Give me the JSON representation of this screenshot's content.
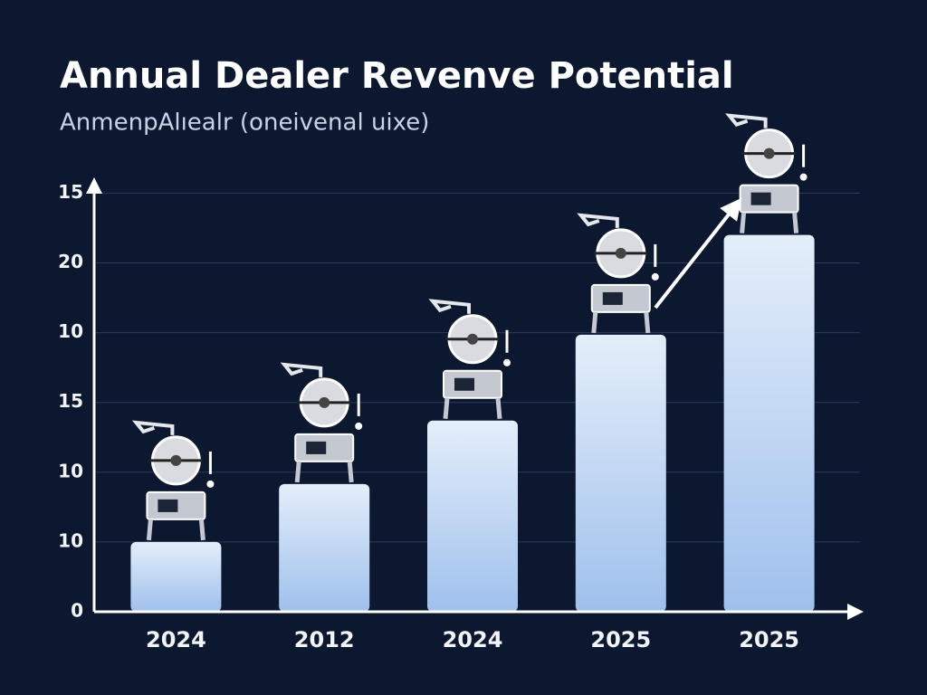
{
  "chart_data": {
    "type": "bar",
    "title": "Annual Dealer Revenve Potential",
    "subtitle": "AnmenpAlıealr (oneivenal uixe)",
    "categories": [
      "2024",
      "2012",
      "2024",
      "2025",
      "2025"
    ],
    "values": [
      1.0,
      1.83,
      2.74,
      3.97,
      5.4
    ],
    "color": "#c9dcf3",
    "ylim": [
      0,
      6.2
    ],
    "yticks": [
      0,
      {
        "value": 1,
        "label": "10"
      },
      {
        "value": 2,
        "label": "10"
      },
      {
        "value": 3,
        "label": "15"
      },
      {
        "value": 4,
        "label": "10"
      },
      {
        "value": 5,
        "label": "20"
      },
      {
        "value": 6,
        "label": "15"
      }
    ],
    "grid": true
  }
}
